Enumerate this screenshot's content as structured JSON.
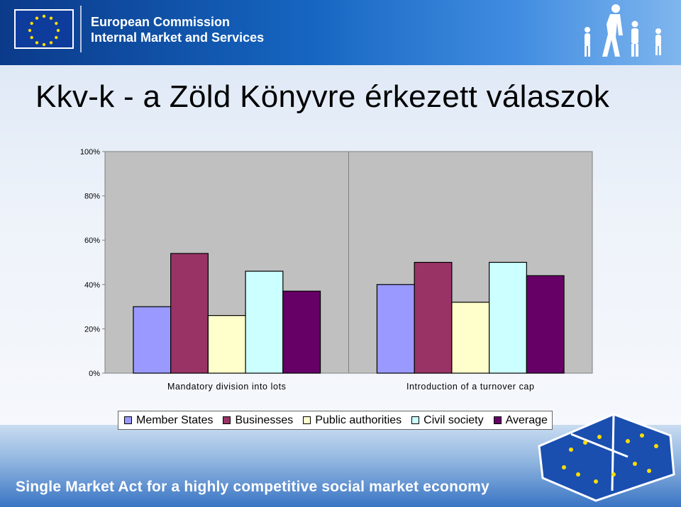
{
  "header": {
    "org_name": "European Commission",
    "org_dept": "Internal Market and Services",
    "flag_icon": "eu-flag-icon",
    "people_icon": "walking-people-icon"
  },
  "slide": {
    "title": "Kkv-k - a Zöld Könyvre érkezett válaszok"
  },
  "footer": {
    "text": "Single Market Act for a highly competitive social market economy",
    "puzzle_icon": "eu-puzzle-icon"
  },
  "colors": {
    "Member States": "#9999ff",
    "Businesses": "#993366",
    "Public authorities": "#ffffcc",
    "Civil society": "#ccffff",
    "Average": "#660066"
  },
  "chart_data": {
    "type": "bar",
    "categories": [
      "Mandatory division into lots",
      "Introduction of a turnover cap"
    ],
    "series": [
      {
        "name": "Member States",
        "values": [
          30,
          40
        ]
      },
      {
        "name": "Businesses",
        "values": [
          54,
          50
        ]
      },
      {
        "name": "Public authorities",
        "values": [
          26,
          32
        ]
      },
      {
        "name": "Civil society",
        "values": [
          46,
          50
        ]
      },
      {
        "name": "Average",
        "values": [
          37,
          44
        ]
      }
    ],
    "yticks": [
      "0%",
      "20%",
      "40%",
      "60%",
      "80%",
      "100%"
    ],
    "ylim": [
      0,
      100
    ],
    "grid": false,
    "legend_position": "bottom"
  }
}
